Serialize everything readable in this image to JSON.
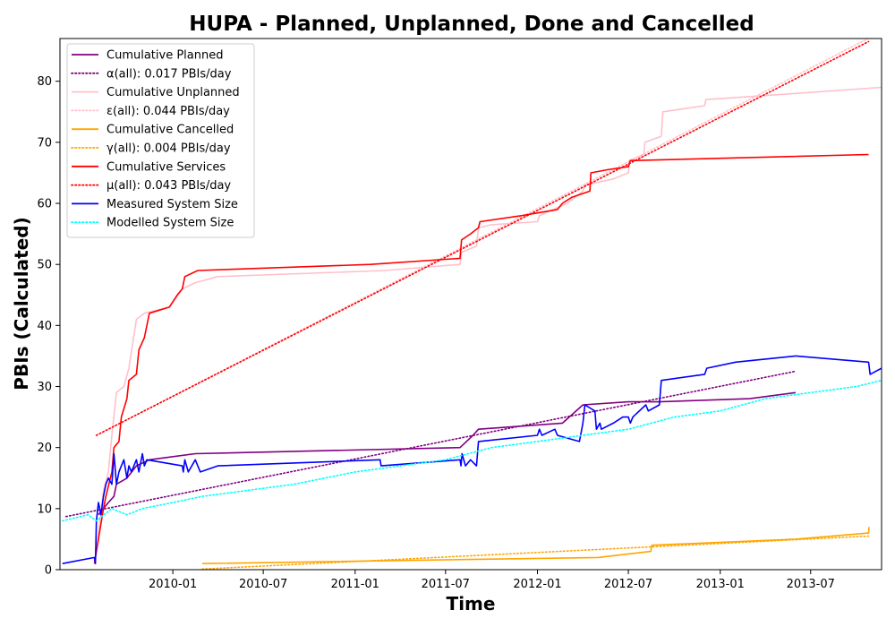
{
  "chart_data": {
    "type": "line",
    "title": "HUPA - Planned, Unplanned, Done  and Cancelled",
    "xlabel": "Time",
    "ylabel": "PBIs (Calculated)",
    "xlim": [
      "2009-05-20",
      "2013-11-20"
    ],
    "ylim": [
      0,
      87
    ],
    "x_ticks": [
      "2010-01",
      "2010-07",
      "2011-01",
      "2011-07",
      "2012-01",
      "2012-07",
      "2013-01",
      "2013-07"
    ],
    "y_ticks": [
      0,
      10,
      20,
      30,
      40,
      50,
      60,
      70,
      80
    ],
    "grid": false,
    "legend_position": "top-left",
    "series": [
      {
        "name": "Cumulative Planned",
        "color": "#800080",
        "style": "solid",
        "points": [
          [
            "2009-08-05",
            9
          ],
          [
            "2009-08-25",
            11
          ],
          [
            "2009-09-05",
            12
          ],
          [
            "2009-09-10",
            14
          ],
          [
            "2009-10-01",
            15
          ],
          [
            "2009-10-20",
            17
          ],
          [
            "2009-11-15",
            18
          ],
          [
            "2010-02-15",
            19
          ],
          [
            "2011-07-30",
            20
          ],
          [
            "2011-08-25",
            22
          ],
          [
            "2011-09-05",
            23
          ],
          [
            "2012-02-20",
            24
          ],
          [
            "2012-04-01",
            27
          ],
          [
            "2012-07-01",
            27.5
          ],
          [
            "2012-09-01",
            27.5
          ],
          [
            "2013-03-01",
            28
          ],
          [
            "2013-06-01",
            29
          ]
        ]
      },
      {
        "name": "α(all): 0.017 PBIs/day",
        "color": "#800080",
        "style": "dotted",
        "points": [
          [
            "2009-06-01",
            8.7
          ],
          [
            "2013-06-01",
            32.5
          ]
        ]
      },
      {
        "name": "Cumulative Unplanned",
        "color": "#ffc0cb",
        "style": "solid",
        "points": [
          [
            "2009-07-28",
            1
          ],
          [
            "2009-08-05",
            6
          ],
          [
            "2009-08-15",
            13
          ],
          [
            "2009-08-25",
            16
          ],
          [
            "2009-09-01",
            22
          ],
          [
            "2009-09-10",
            29
          ],
          [
            "2009-09-25",
            30
          ],
          [
            "2009-10-05",
            33
          ],
          [
            "2009-10-20",
            41
          ],
          [
            "2009-11-05",
            42
          ],
          [
            "2009-12-25",
            43
          ],
          [
            "2010-01-20",
            46
          ],
          [
            "2010-02-15",
            47
          ],
          [
            "2010-04-01",
            48
          ],
          [
            "2011-03-01",
            49
          ],
          [
            "2011-07-30",
            50
          ],
          [
            "2011-08-02",
            52
          ],
          [
            "2011-09-01",
            53
          ],
          [
            "2011-09-05",
            56
          ],
          [
            "2011-10-01",
            56.5
          ],
          [
            "2012-01-01",
            57
          ],
          [
            "2012-01-05",
            58
          ],
          [
            "2012-03-01",
            60
          ],
          [
            "2012-04-01",
            62
          ],
          [
            "2012-04-05",
            63
          ],
          [
            "2012-06-01",
            64
          ],
          [
            "2012-07-01",
            65
          ],
          [
            "2012-07-03",
            67
          ],
          [
            "2012-08-01",
            68
          ],
          [
            "2012-08-03",
            70
          ],
          [
            "2012-09-05",
            71
          ],
          [
            "2012-09-08",
            75
          ],
          [
            "2012-12-01",
            76
          ],
          [
            "2012-12-03",
            77
          ],
          [
            "2013-06-01",
            78
          ],
          [
            "2013-11-20",
            79
          ]
        ]
      },
      {
        "name": "ε(all): 0.044 PBIs/day",
        "color": "#ffc0cb",
        "style": "dotted",
        "points": [
          [
            "2009-08-01",
            22
          ],
          [
            "2013-11-05",
            87.5
          ]
        ]
      },
      {
        "name": "Cumulative Cancelled",
        "color": "#ffa500",
        "style": "solid",
        "points": [
          [
            "2010-03-01",
            1
          ],
          [
            "2012-05-01",
            2
          ],
          [
            "2012-08-15",
            3
          ],
          [
            "2012-08-17",
            4
          ],
          [
            "2013-06-01",
            5
          ],
          [
            "2013-10-25",
            6
          ],
          [
            "2013-10-26",
            7
          ]
        ]
      },
      {
        "name": "γ(all): 0.004 PBIs/day",
        "color": "#ffa500",
        "style": "dotted",
        "points": [
          [
            "2010-03-01",
            0.1
          ],
          [
            "2013-10-25",
            5.5
          ]
        ]
      },
      {
        "name": "Cumulative Services",
        "color": "#ff0000",
        "style": "solid",
        "points": [
          [
            "2009-07-28",
            1
          ],
          [
            "2009-08-05",
            5
          ],
          [
            "2009-08-15",
            10
          ],
          [
            "2009-08-20",
            12
          ],
          [
            "2009-09-01",
            16
          ],
          [
            "2009-09-05",
            20
          ],
          [
            "2009-09-15",
            21
          ],
          [
            "2009-09-20",
            25
          ],
          [
            "2009-10-01",
            28
          ],
          [
            "2009-10-05",
            31
          ],
          [
            "2009-10-20",
            32
          ],
          [
            "2009-10-25",
            36
          ],
          [
            "2009-11-05",
            38
          ],
          [
            "2009-11-10",
            40
          ],
          [
            "2009-11-15",
            42
          ],
          [
            "2009-12-25",
            43
          ],
          [
            "2010-01-10",
            45
          ],
          [
            "2010-01-20",
            46
          ],
          [
            "2010-01-25",
            48
          ],
          [
            "2010-02-20",
            49
          ],
          [
            "2011-02-01",
            50
          ],
          [
            "2011-07-30",
            51
          ],
          [
            "2011-08-02",
            54
          ],
          [
            "2011-08-20",
            55
          ],
          [
            "2011-09-05",
            56
          ],
          [
            "2011-09-08",
            57
          ],
          [
            "2011-12-01",
            58
          ],
          [
            "2012-02-10",
            59
          ],
          [
            "2012-02-20",
            60
          ],
          [
            "2012-03-10",
            61
          ],
          [
            "2012-04-15",
            62
          ],
          [
            "2012-04-17",
            65
          ],
          [
            "2012-05-20",
            65.5
          ],
          [
            "2012-07-01",
            66
          ],
          [
            "2012-07-05",
            67
          ],
          [
            "2013-10-25",
            68
          ]
        ]
      },
      {
        "name": "μ(all): 0.043 PBIs/day",
        "color": "#ff0000",
        "style": "dotted",
        "points": [
          [
            "2009-08-01",
            22
          ],
          [
            "2013-10-25",
            86.5
          ]
        ]
      },
      {
        "name": "Measured System Size",
        "color": "#0000ff",
        "style": "solid",
        "points": [
          [
            "2009-05-25",
            1
          ],
          [
            "2009-07-28",
            2
          ],
          [
            "2009-07-30",
            1
          ],
          [
            "2009-08-01",
            8
          ],
          [
            "2009-08-05",
            11
          ],
          [
            "2009-08-10",
            9
          ],
          [
            "2009-08-15",
            12
          ],
          [
            "2009-08-20",
            14
          ],
          [
            "2009-08-25",
            15
          ],
          [
            "2009-09-01",
            14
          ],
          [
            "2009-09-05",
            19
          ],
          [
            "2009-09-10",
            14
          ],
          [
            "2009-09-15",
            16
          ],
          [
            "2009-09-20",
            17
          ],
          [
            "2009-09-25",
            18
          ],
          [
            "2009-10-01",
            15
          ],
          [
            "2009-10-05",
            17
          ],
          [
            "2009-10-10",
            16
          ],
          [
            "2009-10-15",
            17
          ],
          [
            "2009-10-20",
            18
          ],
          [
            "2009-10-25",
            16
          ],
          [
            "2009-11-01",
            19
          ],
          [
            "2009-11-05",
            17
          ],
          [
            "2009-11-10",
            18
          ],
          [
            "2010-01-20",
            17
          ],
          [
            "2010-01-22",
            16
          ],
          [
            "2010-01-25",
            18
          ],
          [
            "2010-02-01",
            16
          ],
          [
            "2010-02-15",
            18
          ],
          [
            "2010-02-25",
            16
          ],
          [
            "2010-04-01",
            17
          ],
          [
            "2011-02-20",
            18
          ],
          [
            "2011-02-22",
            17
          ],
          [
            "2011-07-30",
            18
          ],
          [
            "2011-08-01",
            17
          ],
          [
            "2011-08-03",
            19
          ],
          [
            "2011-08-10",
            17
          ],
          [
            "2011-08-20",
            18
          ],
          [
            "2011-09-01",
            17
          ],
          [
            "2011-09-05",
            21
          ],
          [
            "2012-01-01",
            22
          ],
          [
            "2012-01-05",
            23
          ],
          [
            "2012-01-10",
            22
          ],
          [
            "2012-02-05",
            23
          ],
          [
            "2012-02-10",
            22
          ],
          [
            "2012-03-25",
            21
          ],
          [
            "2012-04-01",
            24
          ],
          [
            "2012-04-05",
            27
          ],
          [
            "2012-04-25",
            26
          ],
          [
            "2012-04-28",
            23
          ],
          [
            "2012-05-05",
            24
          ],
          [
            "2012-05-08",
            23
          ],
          [
            "2012-06-01",
            24
          ],
          [
            "2012-06-20",
            25
          ],
          [
            "2012-07-01",
            25
          ],
          [
            "2012-07-05",
            24
          ],
          [
            "2012-07-10",
            25
          ],
          [
            "2012-08-05",
            27
          ],
          [
            "2012-08-10",
            26
          ],
          [
            "2012-09-01",
            27
          ],
          [
            "2012-09-05",
            31
          ],
          [
            "2012-12-01",
            32
          ],
          [
            "2012-12-05",
            33
          ],
          [
            "2013-02-01",
            34
          ],
          [
            "2013-06-01",
            35
          ],
          [
            "2013-10-25",
            34
          ],
          [
            "2013-10-28",
            32
          ],
          [
            "2013-11-20",
            33
          ]
        ]
      },
      {
        "name": "Modelled System Size",
        "color": "#00ffff",
        "style": "dotted",
        "points": [
          [
            "2009-05-25",
            8
          ],
          [
            "2009-07-15",
            9
          ],
          [
            "2009-08-01",
            8
          ],
          [
            "2009-09-01",
            10
          ],
          [
            "2009-10-01",
            9
          ],
          [
            "2009-11-01",
            10
          ],
          [
            "2010-01-01",
            11
          ],
          [
            "2010-03-01",
            12
          ],
          [
            "2010-06-01",
            13
          ],
          [
            "2010-09-01",
            14
          ],
          [
            "2011-01-01",
            16
          ],
          [
            "2011-04-01",
            17
          ],
          [
            "2011-07-01",
            18
          ],
          [
            "2011-10-01",
            20
          ],
          [
            "2012-01-01",
            21
          ],
          [
            "2012-04-01",
            22
          ],
          [
            "2012-07-01",
            23
          ],
          [
            "2012-10-01",
            25
          ],
          [
            "2013-01-01",
            26
          ],
          [
            "2013-04-01",
            28
          ],
          [
            "2013-07-01",
            29
          ],
          [
            "2013-10-01",
            30
          ],
          [
            "2013-11-20",
            31
          ]
        ]
      }
    ]
  }
}
